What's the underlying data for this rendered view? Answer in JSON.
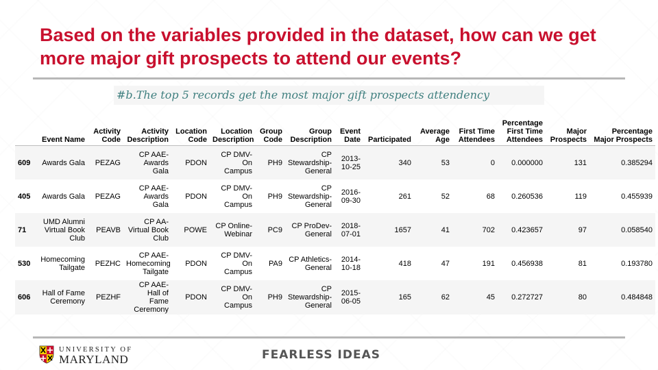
{
  "slide": {
    "title": "Based on the variables provided in the dataset, how can we get more major gift prospects to attend our events?",
    "code_comment": "#b.The top 5 records get the most major gift prospects attendency",
    "footer": {
      "logo_line1": "UNIVERSITY OF",
      "logo_line2": "MARYLAND",
      "tagline": "FEARLESS IDEAS"
    },
    "colors": {
      "title": "#c8102e",
      "rule": "#b7b7b7",
      "comment": "#3f7f7f"
    }
  },
  "table": {
    "columns": [
      "",
      "Event Name",
      "Activity Code",
      "Activity Description",
      "Location Code",
      "Location Description",
      "Group Code",
      "Group Description",
      "Event Date",
      "Participated",
      "Average Age",
      "First Time Attendees",
      "Percentage First Time Attendees",
      "Major Prospects",
      "Percentage Major Prospects"
    ],
    "rows": [
      [
        "609",
        "Awards Gala",
        "PEZAG",
        "CP AAE-Awards Gala",
        "PDON",
        "CP DMV-On Campus",
        "PH9",
        "CP Stewardship-General",
        "2013-10-25",
        "340",
        "53",
        "0",
        "0.000000",
        "131",
        "0.385294"
      ],
      [
        "405",
        "Awards Gala",
        "PEZAG",
        "CP AAE-Awards Gala",
        "PDON",
        "CP DMV-On Campus",
        "PH9",
        "CP Stewardship-General",
        "2016-09-30",
        "261",
        "52",
        "68",
        "0.260536",
        "119",
        "0.455939"
      ],
      [
        "71",
        "UMD Alumni Virtual Book Club",
        "PEAVB",
        "CP AA-Virtual Book Club",
        "POWE",
        "CP Online-Webinar",
        "PC9",
        "CP ProDev-General",
        "2018-07-01",
        "1657",
        "41",
        "702",
        "0.423657",
        "97",
        "0.058540"
      ],
      [
        "530",
        "Homecoming Tailgate",
        "PEZHC",
        "CP AAE-Homecoming Tailgate",
        "PDON",
        "CP DMV-On Campus",
        "PA9",
        "CP Athletics-General",
        "2014-10-18",
        "418",
        "47",
        "191",
        "0.456938",
        "81",
        "0.193780"
      ],
      [
        "606",
        "Hall of Fame Ceremony",
        "PEZHF",
        "CP AAE-Hall of Fame Ceremony",
        "PDON",
        "CP DMV-On Campus",
        "PH9",
        "CP Stewardship-General",
        "2015-06-05",
        "165",
        "62",
        "45",
        "0.272727",
        "80",
        "0.484848"
      ]
    ]
  }
}
